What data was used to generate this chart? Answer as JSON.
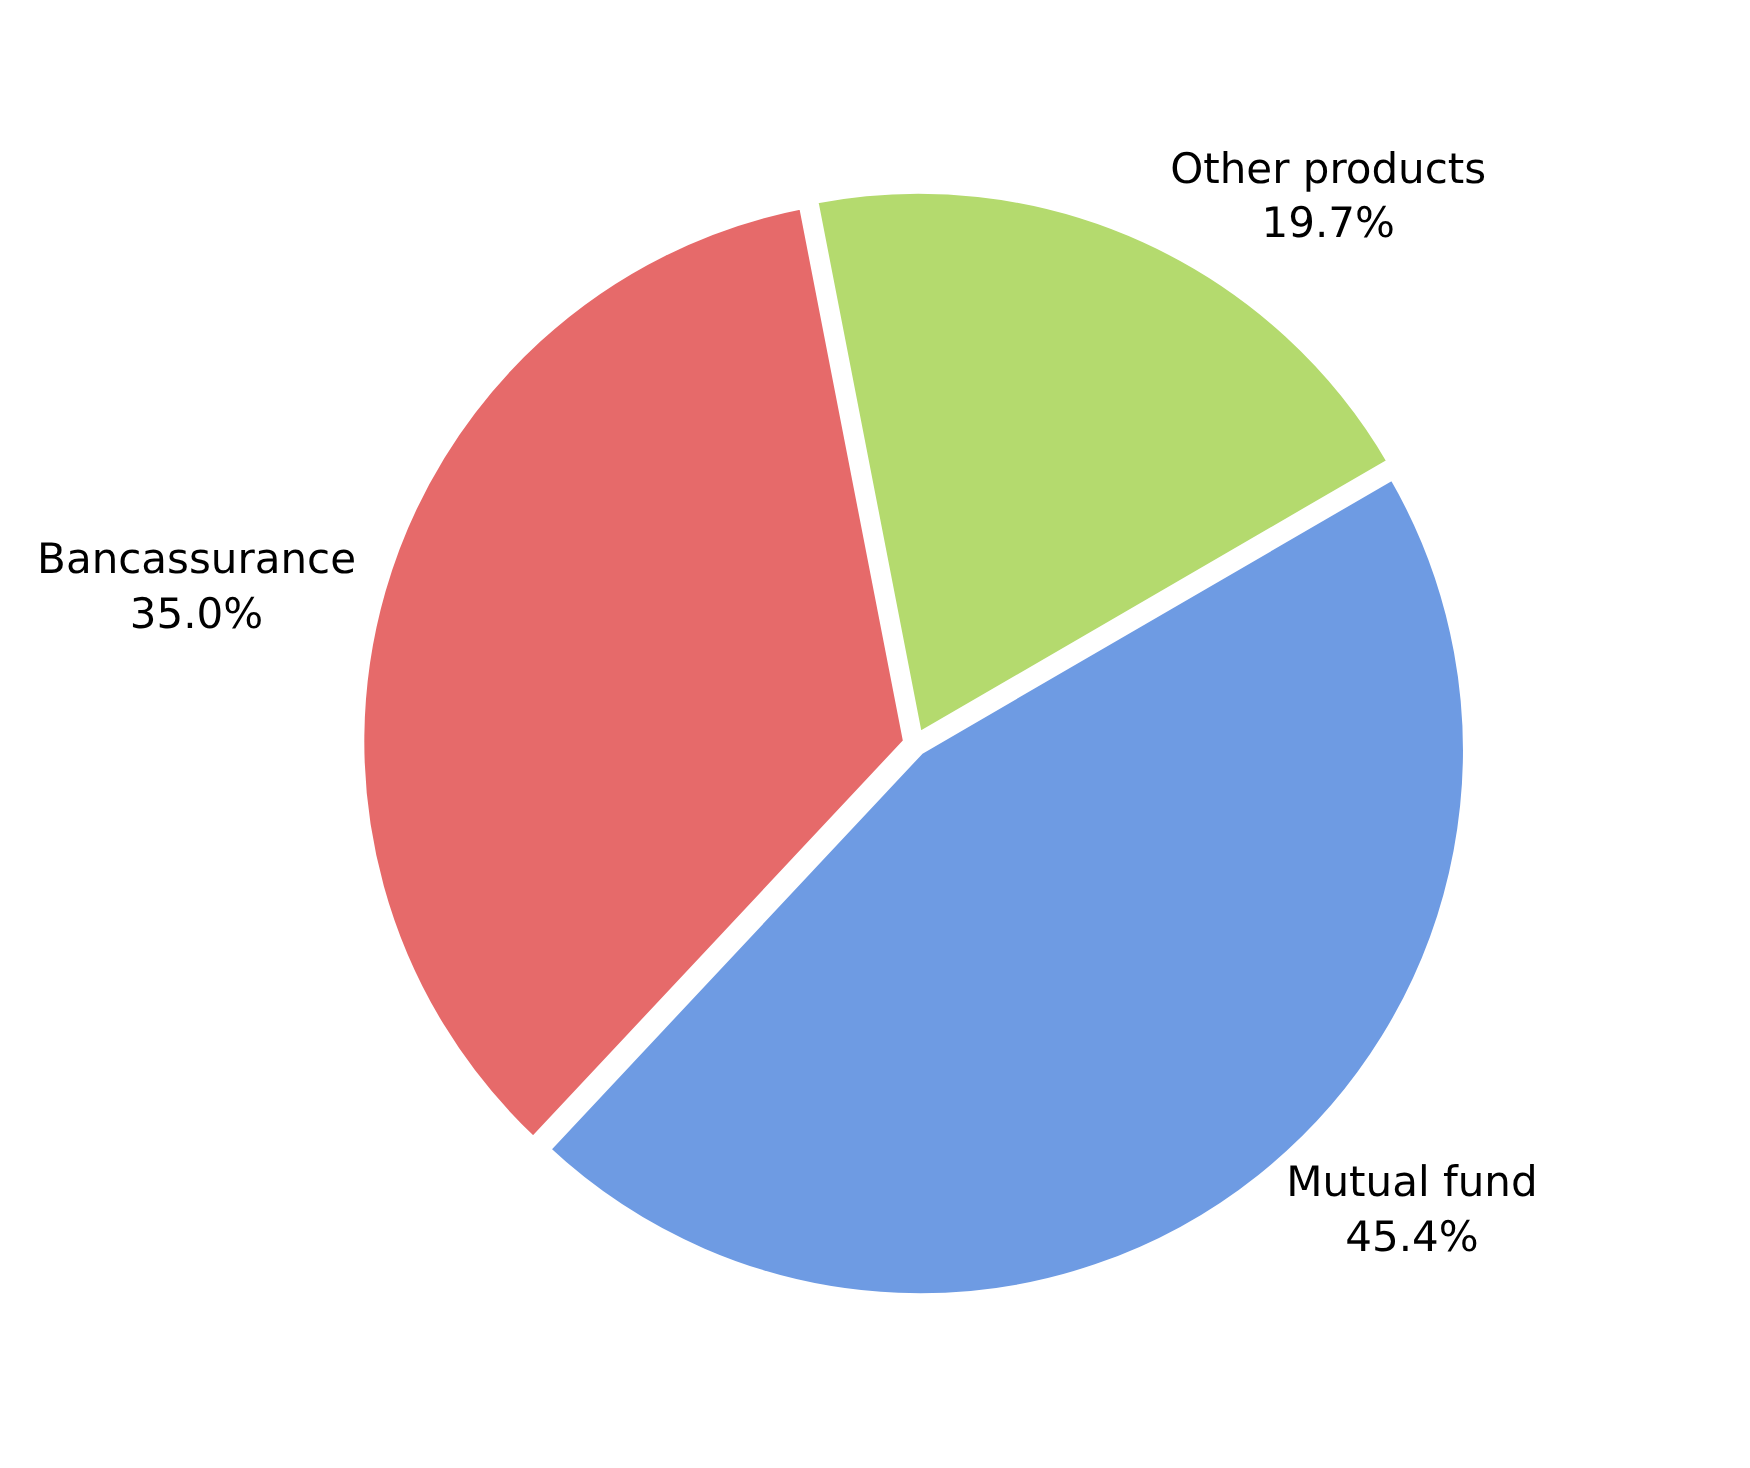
{
  "chart_data": {
    "type": "pie",
    "categories": [
      "Other products",
      "Mutual fund",
      "Bancassurance"
    ],
    "values": [
      19.7,
      45.4,
      35.0
    ],
    "value_labels": [
      "19.7%",
      "45.4%",
      "35.0%"
    ],
    "colors": [
      "#b4da6e",
      "#6e9be3",
      "#e66a6a"
    ]
  }
}
